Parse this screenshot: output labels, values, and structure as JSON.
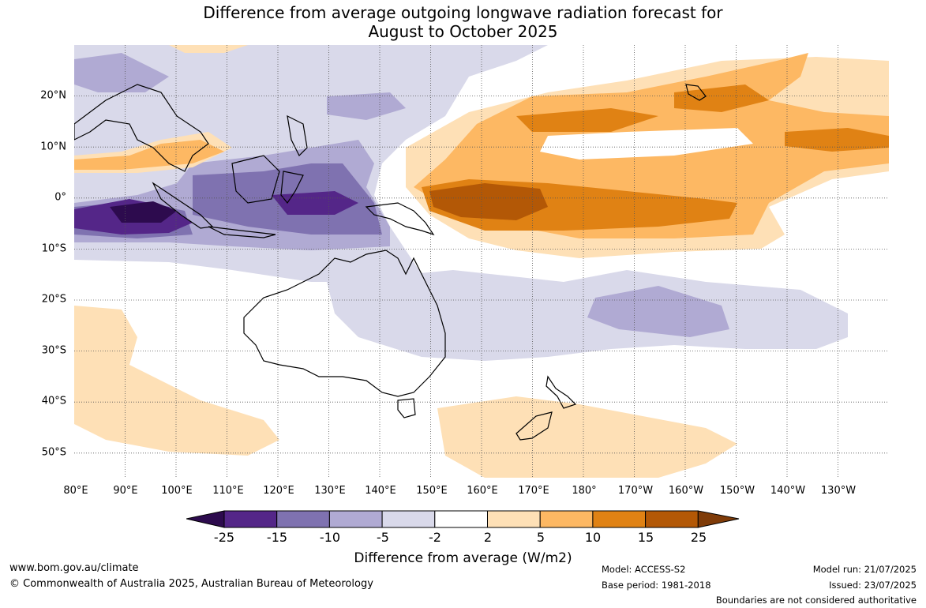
{
  "title": {
    "line1": "Difference from average outgoing longwave radiation forecast for",
    "line2": "August to October 2025"
  },
  "map": {
    "lon_labels": [
      "80°E",
      "90°E",
      "100°E",
      "110°E",
      "120°E",
      "130°E",
      "140°E",
      "150°E",
      "160°E",
      "170°E",
      "180°",
      "170°W",
      "160°W",
      "150°W",
      "140°W",
      "130°W"
    ],
    "lat_labels": [
      "20°N",
      "10°N",
      "0°",
      "10°S",
      "20°S",
      "30°S",
      "40°S",
      "50°S"
    ],
    "colors": {
      "n25": "#2d0b4e",
      "n15": "#542688",
      "n10": "#7f72b0",
      "n5": "#b0aad3",
      "n2": "#d9d9ea",
      "zero": "#ffffff",
      "p2": "#fee0b6",
      "p5": "#fdb863",
      "p10": "#e08214",
      "p15": "#b35806",
      "p25": "#7f3b08"
    }
  },
  "colorbar": {
    "labels": [
      "-25",
      "-15",
      "-10",
      "-5",
      "-2",
      "2",
      "5",
      "10",
      "15",
      "25"
    ],
    "title": "Difference from average (W/m2)"
  },
  "footer": {
    "website": "www.bom.gov.au/climate",
    "copyright": "© Commonwealth of Australia 2025, Australian Bureau of Meteorology",
    "model": "Model: ACCESS-S2",
    "base_period": "Base period: 1981-2018",
    "model_run": "Model run: 21/07/2025",
    "issued": "Issued: 23/07/2025",
    "disclaimer": "Boundaries are not considered authoritative"
  }
}
